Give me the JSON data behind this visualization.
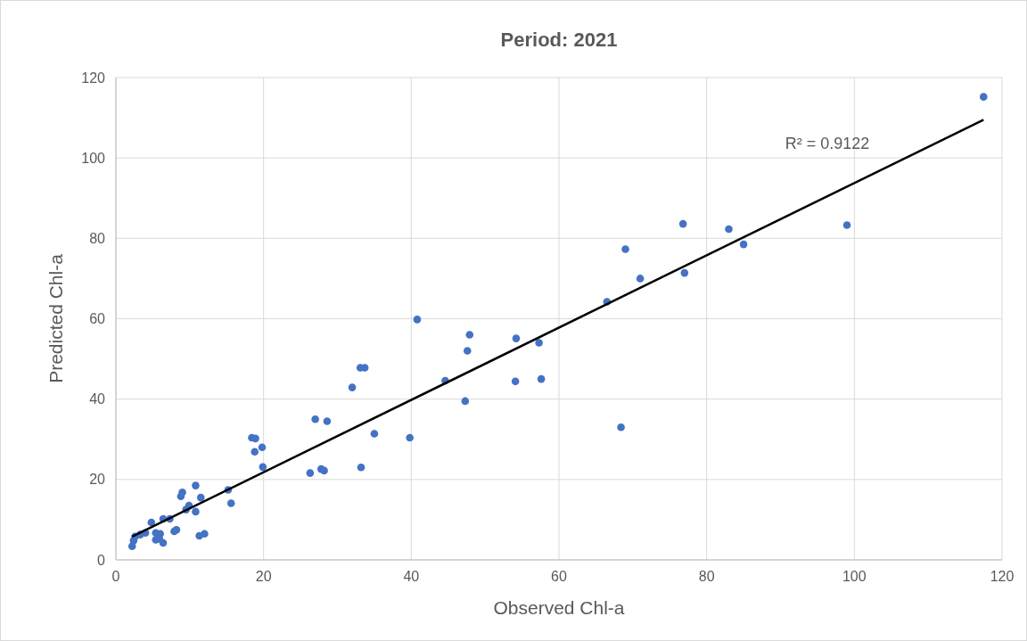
{
  "chart_data": {
    "type": "scatter",
    "title": "Period: 2021",
    "xlabel": "Observed Chl-a",
    "ylabel": "Predicted Chl-a",
    "xlim": [
      0,
      120
    ],
    "xticks": [
      0,
      20,
      40,
      60,
      80,
      100,
      120
    ],
    "ylim": [
      0,
      120
    ],
    "yticks": [
      0,
      20,
      40,
      60,
      80,
      100,
      120
    ],
    "grid": true,
    "annotations": [
      "R² = 0.9122"
    ],
    "series": [
      {
        "color": "#4472c4",
        "marker": "circle",
        "x": [
          117.5,
          99,
          85,
          83,
          77,
          76.8,
          71,
          69,
          68.4,
          66.5,
          57.6,
          57.3,
          54.2,
          54.1,
          47.9,
          47.6,
          47.3,
          44.6,
          40.8,
          39.8,
          35,
          33.7,
          33.1,
          33.2,
          32,
          28.6,
          28.2,
          27.8,
          27,
          26.3,
          19.8,
          19.9,
          18.9,
          18.4,
          18.8,
          15.6,
          15.2,
          12,
          11.5,
          11.3,
          10.8,
          10.8,
          9.9,
          9.5,
          9,
          8.8,
          8.2,
          7.9,
          7.3,
          6.4,
          6.4,
          6,
          5.9,
          5.4,
          5.4,
          4.8,
          4,
          3.3,
          2.6,
          2.4,
          2.2
        ],
        "values": [
          115.2,
          83.3,
          78.5,
          82.3,
          71.4,
          83.6,
          70,
          77.3,
          33,
          64.2,
          45,
          54,
          55.1,
          44.4,
          56,
          52,
          39.5,
          44.6,
          59.8,
          30.4,
          31.4,
          47.8,
          47.8,
          23,
          42.9,
          34.5,
          22.2,
          22.6,
          35,
          21.6,
          28,
          23.1,
          30.2,
          30.4,
          26.9,
          14.1,
          17.4,
          6.5,
          15.5,
          6,
          18.5,
          12,
          13.5,
          12.5,
          16.8,
          15.8,
          7.5,
          7.1,
          10.2,
          10.2,
          4.2,
          6.5,
          5.2,
          5,
          6.7,
          9.3,
          6.7,
          6.3,
          5.8,
          4.8,
          3.4
        ]
      },
      {
        "type": "line",
        "color": "#000000",
        "marker": "none",
        "x": [
          2.2,
          117.5
        ],
        "values": [
          5.8,
          109.5
        ]
      }
    ]
  }
}
